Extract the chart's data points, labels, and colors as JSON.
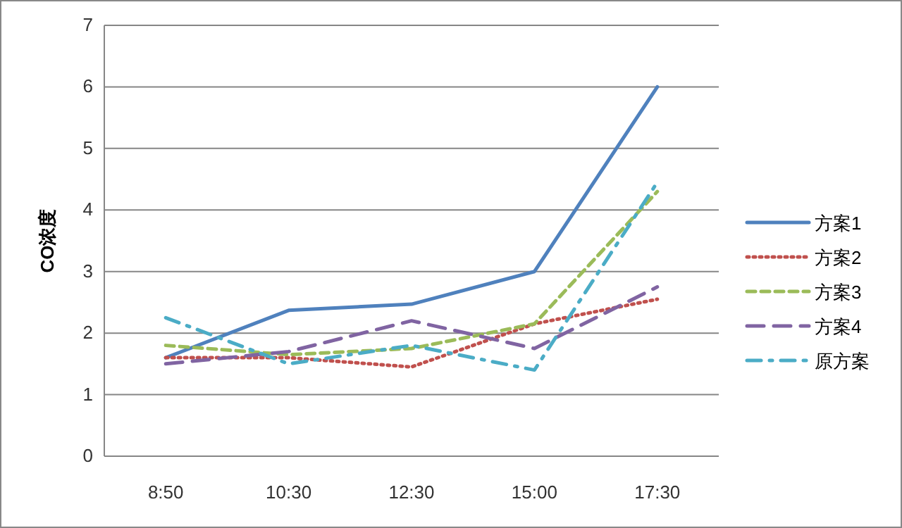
{
  "chart_data": {
    "type": "line",
    "ylabel": "CO浓度",
    "categories": [
      "8:50",
      "10:30",
      "12:30",
      "15:00",
      "17:30"
    ],
    "ylim": [
      0,
      7
    ],
    "yticks": [
      0,
      1,
      2,
      3,
      4,
      5,
      6,
      7
    ],
    "grid": "y",
    "legend": "right",
    "series": [
      {
        "name": "方案1",
        "color": "#4f81bd",
        "line_style": "solid",
        "values": [
          1.6,
          2.37,
          2.47,
          3.0,
          6.0
        ]
      },
      {
        "name": "方案2",
        "color": "#c0504d",
        "line_style": "dotted",
        "values": [
          1.6,
          1.6,
          1.45,
          2.15,
          2.55
        ]
      },
      {
        "name": "方案3",
        "color": "#9bbb59",
        "line_style": "dashed",
        "values": [
          1.8,
          1.65,
          1.75,
          2.15,
          4.3
        ]
      },
      {
        "name": "方案4",
        "color": "#8064a2",
        "line_style": "longdash",
        "values": [
          1.5,
          1.7,
          2.2,
          1.75,
          2.75
        ]
      },
      {
        "name": "原方案",
        "color": "#4bacc6",
        "line_style": "dashdot",
        "values": [
          2.25,
          1.5,
          1.8,
          1.4,
          4.45
        ]
      }
    ]
  }
}
